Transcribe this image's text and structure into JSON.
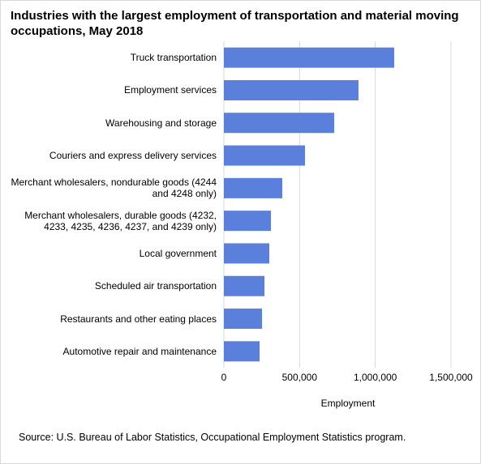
{
  "chart_data": {
    "type": "bar",
    "orientation": "horizontal",
    "title": "Industries with the largest employment of transportation and material moving occupations, May 2018",
    "categories": [
      "Truck transportation",
      "Employment services",
      "Warehousing and storage",
      "Couriers and express delivery services",
      "Merchant wholesalers, nondurable goods (4244 and 4248 only)",
      "Merchant wholesalers, durable goods (4232, 4233, 4235, 4236, 4237, and 4239 only)",
      "Local government",
      "Scheduled air transportation",
      "Restaurants and other eating places",
      "Automotive repair and maintenance"
    ],
    "values": [
      1125000,
      889000,
      729000,
      536000,
      386000,
      311000,
      300000,
      268000,
      252000,
      236000
    ],
    "color": "#5b80dc",
    "xlim": [
      0,
      1500000
    ],
    "xticks": [
      0,
      {
        "value": 500000,
        "label": "500,000"
      },
      {
        "value": 1000000,
        "label": "1,000,000"
      },
      {
        "value": 1500000,
        "label": "1,500,000"
      }
    ],
    "x_label": "Employment",
    "grid": true,
    "source": "Source: U.S. Bureau of Labor Statistics, Occupational Employment Statistics program."
  }
}
